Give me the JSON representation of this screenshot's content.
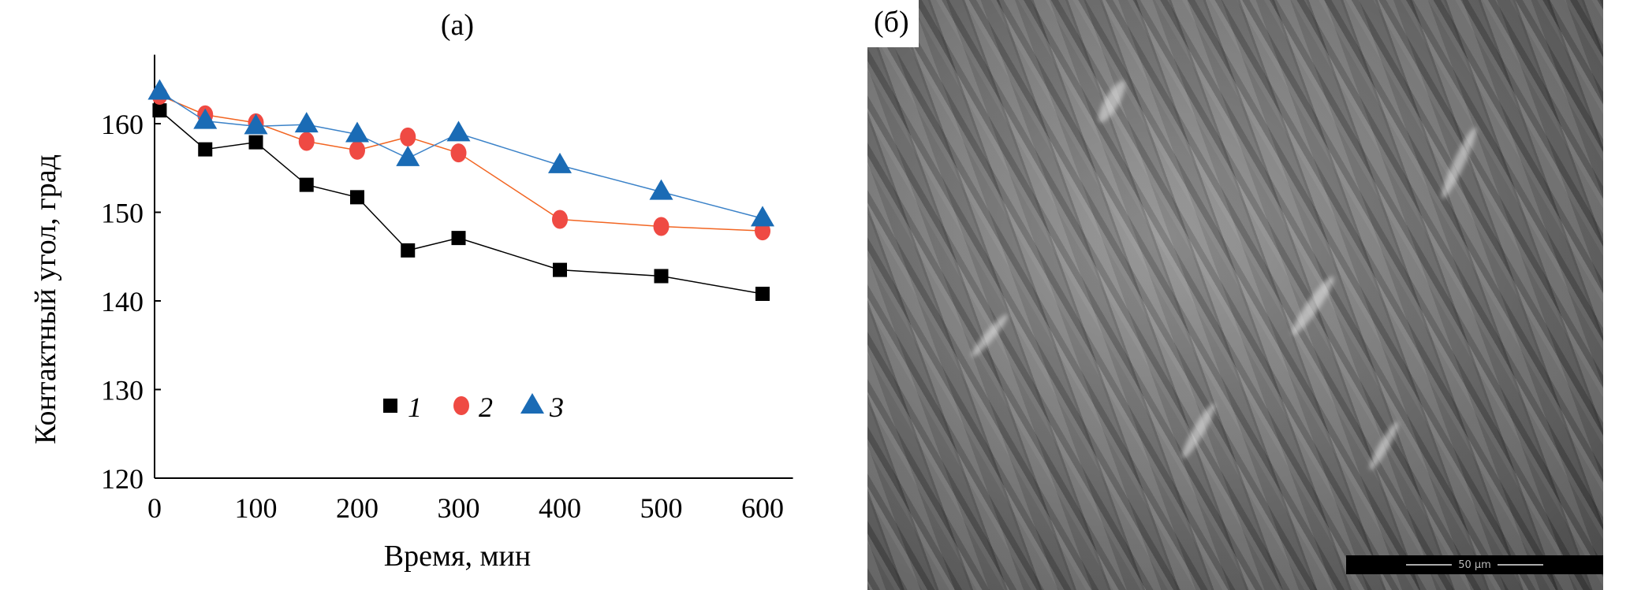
{
  "chart_data": {
    "type": "line",
    "title": "(а)",
    "xlabel": "Время, мин",
    "ylabel": "Контактный угол, град",
    "xlim": [
      0,
      630
    ],
    "ylim": [
      120,
      170
    ],
    "xticks": [
      0,
      100,
      200,
      300,
      400,
      500,
      600
    ],
    "yticks": [
      120,
      130,
      140,
      150,
      160
    ],
    "grid": false,
    "legend_position": "bottom-center",
    "x": [
      5,
      50,
      100,
      150,
      200,
      250,
      300,
      400,
      500,
      600
    ],
    "series": [
      {
        "name": "1",
        "marker": "square",
        "color": "#000000",
        "values": [
          161.5,
          157.1,
          157.9,
          153.1,
          151.7,
          145.7,
          147.1,
          143.5,
          142.8,
          140.8
        ]
      },
      {
        "name": "2",
        "marker": "circle",
        "color": "#ef4a43",
        "line_color": "#f26522",
        "values": [
          163.2,
          161.0,
          160.1,
          158.0,
          157.0,
          158.5,
          156.7,
          149.2,
          148.4,
          147.9
        ]
      },
      {
        "name": "3",
        "marker": "triangle",
        "color": "#1a6bb5",
        "line_color": "#3b82c8",
        "values": [
          163.6,
          160.3,
          159.7,
          159.9,
          158.8,
          156.1,
          158.9,
          155.3,
          152.3,
          149.3
        ]
      }
    ]
  },
  "image_panel": {
    "label": "(б)",
    "scale_bar": "50 µm"
  }
}
